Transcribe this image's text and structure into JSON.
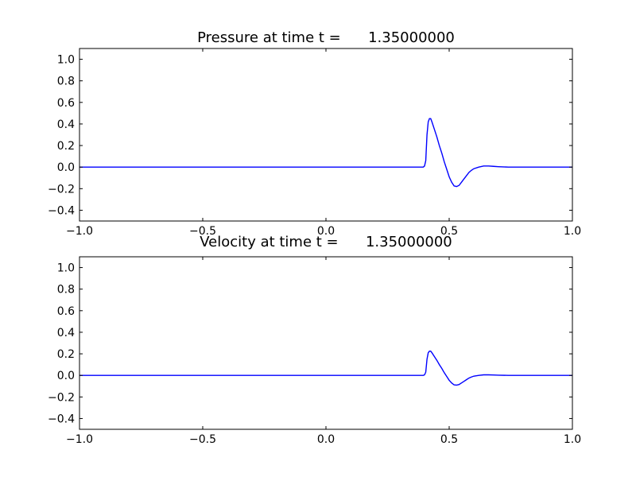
{
  "chart_data": [
    {
      "type": "line",
      "title": "Pressure at time t =      1.35000000",
      "xlabel": "",
      "ylabel": "",
      "xlim": [
        -1.0,
        1.0
      ],
      "ylim": [
        -0.5,
        1.1
      ],
      "xticks": [
        "−1.0",
        "−0.5",
        "0.0",
        "0.5",
        "1.0"
      ],
      "xtick_values": [
        -1.0,
        -0.5,
        0.0,
        0.5,
        1.0
      ],
      "yticks": [
        "−0.4",
        "−0.2",
        "0.0",
        "0.2",
        "0.4",
        "0.6",
        "0.8",
        "1.0"
      ],
      "ytick_values": [
        -0.4,
        -0.2,
        0.0,
        0.2,
        0.4,
        0.6,
        0.8,
        1.0
      ],
      "grid": false,
      "series": [
        {
          "color": "#0000ff",
          "x": [
            -1.0,
            0.0,
            0.39,
            0.395,
            0.4,
            0.405,
            0.41,
            0.415,
            0.42,
            0.425,
            0.43,
            0.44,
            0.45,
            0.46,
            0.47,
            0.48,
            0.49,
            0.5,
            0.51,
            0.52,
            0.53,
            0.54,
            0.55,
            0.56,
            0.57,
            0.58,
            0.59,
            0.6,
            0.62,
            0.64,
            0.66,
            0.68,
            0.7,
            0.74,
            0.8,
            0.9,
            1.0
          ],
          "y": [
            0.0,
            0.0,
            0.0,
            0.0,
            0.01,
            0.06,
            0.3,
            0.42,
            0.45,
            0.45,
            0.42,
            0.35,
            0.28,
            0.2,
            0.13,
            0.05,
            -0.02,
            -0.09,
            -0.14,
            -0.175,
            -0.18,
            -0.17,
            -0.14,
            -0.11,
            -0.08,
            -0.05,
            -0.03,
            -0.015,
            0.0,
            0.01,
            0.01,
            0.007,
            0.004,
            0.0,
            0.0,
            0.0,
            0.0
          ]
        }
      ]
    },
    {
      "type": "line",
      "title": "Velocity at time t =      1.35000000",
      "xlabel": "",
      "ylabel": "",
      "xlim": [
        -1.0,
        1.0
      ],
      "ylim": [
        -0.5,
        1.1
      ],
      "xticks": [
        "−1.0",
        "−0.5",
        "0.0",
        "0.5",
        "1.0"
      ],
      "xtick_values": [
        -1.0,
        -0.5,
        0.0,
        0.5,
        1.0
      ],
      "yticks": [
        "−0.4",
        "−0.2",
        "0.0",
        "0.2",
        "0.4",
        "0.6",
        "0.8",
        "1.0"
      ],
      "ytick_values": [
        -0.4,
        -0.2,
        0.0,
        0.2,
        0.4,
        0.6,
        0.8,
        1.0
      ],
      "grid": false,
      "series": [
        {
          "color": "#0000ff",
          "x": [
            -1.0,
            0.0,
            0.39,
            0.395,
            0.4,
            0.405,
            0.41,
            0.415,
            0.42,
            0.425,
            0.43,
            0.44,
            0.45,
            0.46,
            0.47,
            0.48,
            0.49,
            0.5,
            0.51,
            0.52,
            0.53,
            0.54,
            0.55,
            0.56,
            0.57,
            0.58,
            0.59,
            0.6,
            0.62,
            0.64,
            0.66,
            0.68,
            0.7,
            0.74,
            0.8,
            0.9,
            1.0
          ],
          "y": [
            0.0,
            0.0,
            0.0,
            0.0,
            0.005,
            0.03,
            0.15,
            0.21,
            0.225,
            0.225,
            0.21,
            0.175,
            0.14,
            0.1,
            0.065,
            0.025,
            -0.01,
            -0.045,
            -0.07,
            -0.088,
            -0.09,
            -0.085,
            -0.07,
            -0.055,
            -0.04,
            -0.025,
            -0.015,
            -0.007,
            0.0,
            0.005,
            0.005,
            0.0035,
            0.002,
            0.0,
            0.0,
            0.0,
            0.0
          ]
        }
      ]
    }
  ]
}
